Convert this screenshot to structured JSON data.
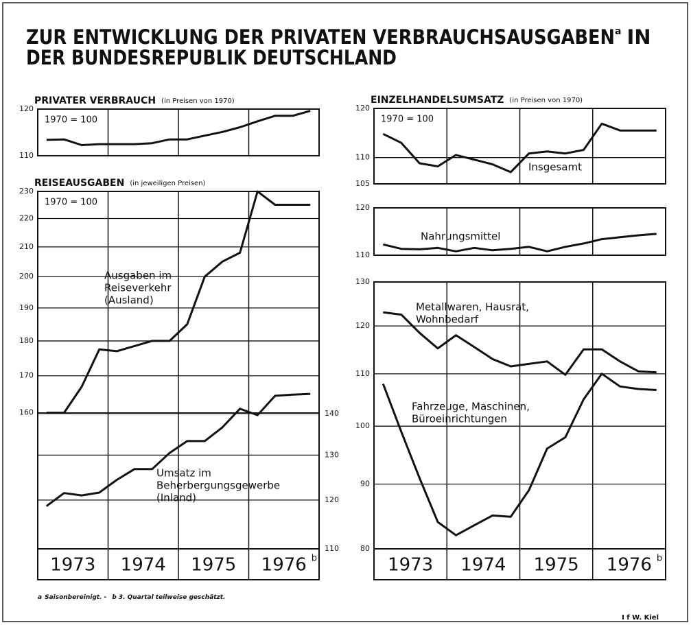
{
  "header": {
    "title_lines": [
      "ZUR ENTWICKLUNG DER PRIVATEN VERBRAUCHSAUSGABEN",
      "DER BUNDESREPUBLIK DEUTSCHLAND"
    ],
    "title_note": "a",
    "title_tail": "IN"
  },
  "footnotes": [
    {
      "mark": "a",
      "text": "Saisonbereinigt. -"
    },
    {
      "mark": "b",
      "text": "3. Quartal teilweise geschätzt."
    }
  ],
  "source": "I f W. Kiel",
  "chart_data": [
    {
      "type": "line",
      "title": "PRIVATER VERBRAUCH",
      "subtitle": "(in Preisen von 1970)",
      "index_note": "1970 = 100",
      "log_scale": true,
      "ylim": [
        110,
        120
      ],
      "yticks": [
        110,
        120
      ],
      "grid": true,
      "series": [
        {
          "color": "#111111",
          "values": [
            113.3,
            113.4,
            112.2,
            112.4,
            112.4,
            112.4,
            112.6,
            113.4,
            113.4,
            114.2,
            115.0,
            116.0,
            117.3,
            118.5,
            118.5,
            119.6
          ]
        }
      ]
    },
    {
      "type": "line",
      "title": "REISEAUSGABEN",
      "subtitle": "(in jeweiligen Preisen)",
      "index_note": "1970 = 100",
      "log_scale": true,
      "ylim": [
        128,
        230
      ],
      "yticks": [
        160,
        170,
        180,
        190,
        200,
        210,
        220,
        230
      ],
      "y2lim": [
        110,
        208
      ],
      "y2ticks": [
        110,
        120,
        130,
        140
      ],
      "grid": true,
      "x_labels": [
        "1973",
        "1974",
        "1975",
        "1976"
      ],
      "x_label_note": "b",
      "series": [
        {
          "label": [
            "Ausgaben im",
            "Reiseverkehr",
            "(Ausland)"
          ],
          "color": "#111111",
          "values": [
            160,
            160,
            167,
            177.5,
            177,
            178.5,
            180,
            180,
            185,
            200,
            205,
            208,
            230,
            225,
            225,
            225
          ]
        },
        {
          "label": [
            "Umsatz im",
            "Beherbergungsgewerbe",
            "(Inland)"
          ],
          "color": "#111111",
          "axis": "y2",
          "values": [
            118.7,
            121.5,
            121,
            121.6,
            124.4,
            126.8,
            126.8,
            130.5,
            133.3,
            133.3,
            136.6,
            141.2,
            139.6,
            144.5,
            144.8,
            145
          ]
        }
      ]
    },
    {
      "type": "line",
      "title": "EINZELHANDELSUMSATZ",
      "subtitle": "(in Preisen von 1970)",
      "index_note": "1970 = 100",
      "log_scale": true,
      "ylim": [
        105,
        120
      ],
      "yticks": [
        105,
        110,
        120
      ],
      "grid": true,
      "series": [
        {
          "label": [
            "Insgesamt"
          ],
          "color": "#111111",
          "values": [
            114.7,
            112.9,
            108.9,
            108.3,
            110.5,
            109.6,
            108.7,
            107.2,
            110.8,
            111.2,
            110.8,
            111.5,
            116.8,
            115.4,
            115.4,
            115.4
          ]
        }
      ]
    },
    {
      "type": "line",
      "log_scale": true,
      "ylim": [
        110,
        120
      ],
      "yticks": [
        110,
        120
      ],
      "grid": true,
      "series": [
        {
          "label": [
            "Nahrungsmittel"
          ],
          "color": "#111111",
          "values": [
            112.2,
            111.3,
            111.2,
            111.5,
            110.8,
            111.5,
            111.0,
            111.3,
            111.7,
            110.8,
            111.7,
            112.4,
            113.3,
            113.7,
            114.1,
            114.4
          ]
        }
      ]
    },
    {
      "type": "line",
      "log_scale": true,
      "ylim": [
        80,
        130
      ],
      "yticks": [
        80,
        90,
        100,
        110,
        120,
        130
      ],
      "grid": true,
      "x_labels": [
        "1973",
        "1974",
        "1975",
        "1976"
      ],
      "x_label_note": "b",
      "series": [
        {
          "label": [
            "Metallwaren, Hausrat,",
            "Wohnbedarf"
          ],
          "color": "#111111",
          "values": [
            123,
            122.5,
            118.5,
            115.2,
            118,
            115.5,
            113,
            111.5,
            112,
            112.5,
            109.8,
            115,
            115,
            112.5,
            110.5,
            110.3
          ]
        },
        {
          "label": [
            "Fahrzeuge, Maschinen,",
            "Büroeinrichtungen"
          ],
          "color": "#111111",
          "values": [
            108,
            99,
            91,
            84,
            82,
            83.5,
            85,
            84.8,
            89,
            96,
            98,
            105,
            110,
            107.5,
            107,
            106.8
          ]
        }
      ]
    }
  ]
}
